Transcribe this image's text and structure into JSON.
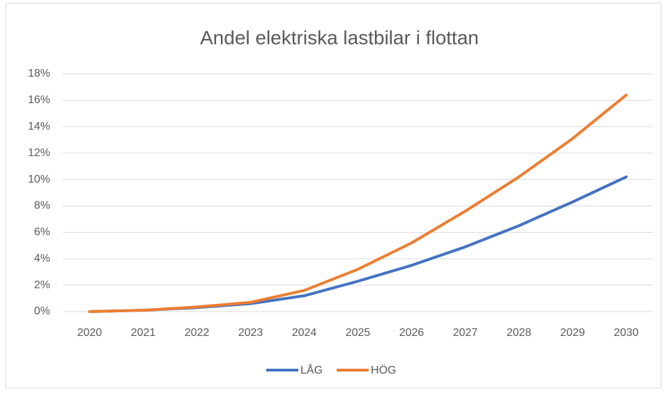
{
  "chart_data": {
    "type": "line",
    "title": "Andel elektriska lastbilar i flottan",
    "categories": [
      "2020",
      "2021",
      "2022",
      "2023",
      "2024",
      "2025",
      "2026",
      "2027",
      "2028",
      "2029",
      "2030"
    ],
    "series": [
      {
        "name": "LÅG",
        "color": "#4472c4",
        "values": [
          0,
          0.1,
          0.3,
          0.6,
          1.2,
          2.3,
          3.5,
          4.9,
          6.5,
          8.3,
          10.2
        ]
      },
      {
        "name": "HÖG",
        "color": "#ed7d31",
        "values": [
          0,
          0.1,
          0.35,
          0.7,
          1.6,
          3.2,
          5.2,
          7.6,
          10.2,
          13.1,
          16.4
        ]
      }
    ],
    "ylim": [
      0,
      18
    ],
    "yticks": [
      {
        "value": 0,
        "label": "0%"
      },
      {
        "value": 2,
        "label": "2%"
      },
      {
        "value": 4,
        "label": "4%"
      },
      {
        "value": 6,
        "label": "6%"
      },
      {
        "value": 8,
        "label": "8%"
      },
      {
        "value": 10,
        "label": "10%"
      },
      {
        "value": 12,
        "label": "12%"
      },
      {
        "value": 14,
        "label": "14%"
      },
      {
        "value": 16,
        "label": "16%"
      },
      {
        "value": 18,
        "label": "18%"
      }
    ],
    "grid": true,
    "legend": "bottom"
  }
}
